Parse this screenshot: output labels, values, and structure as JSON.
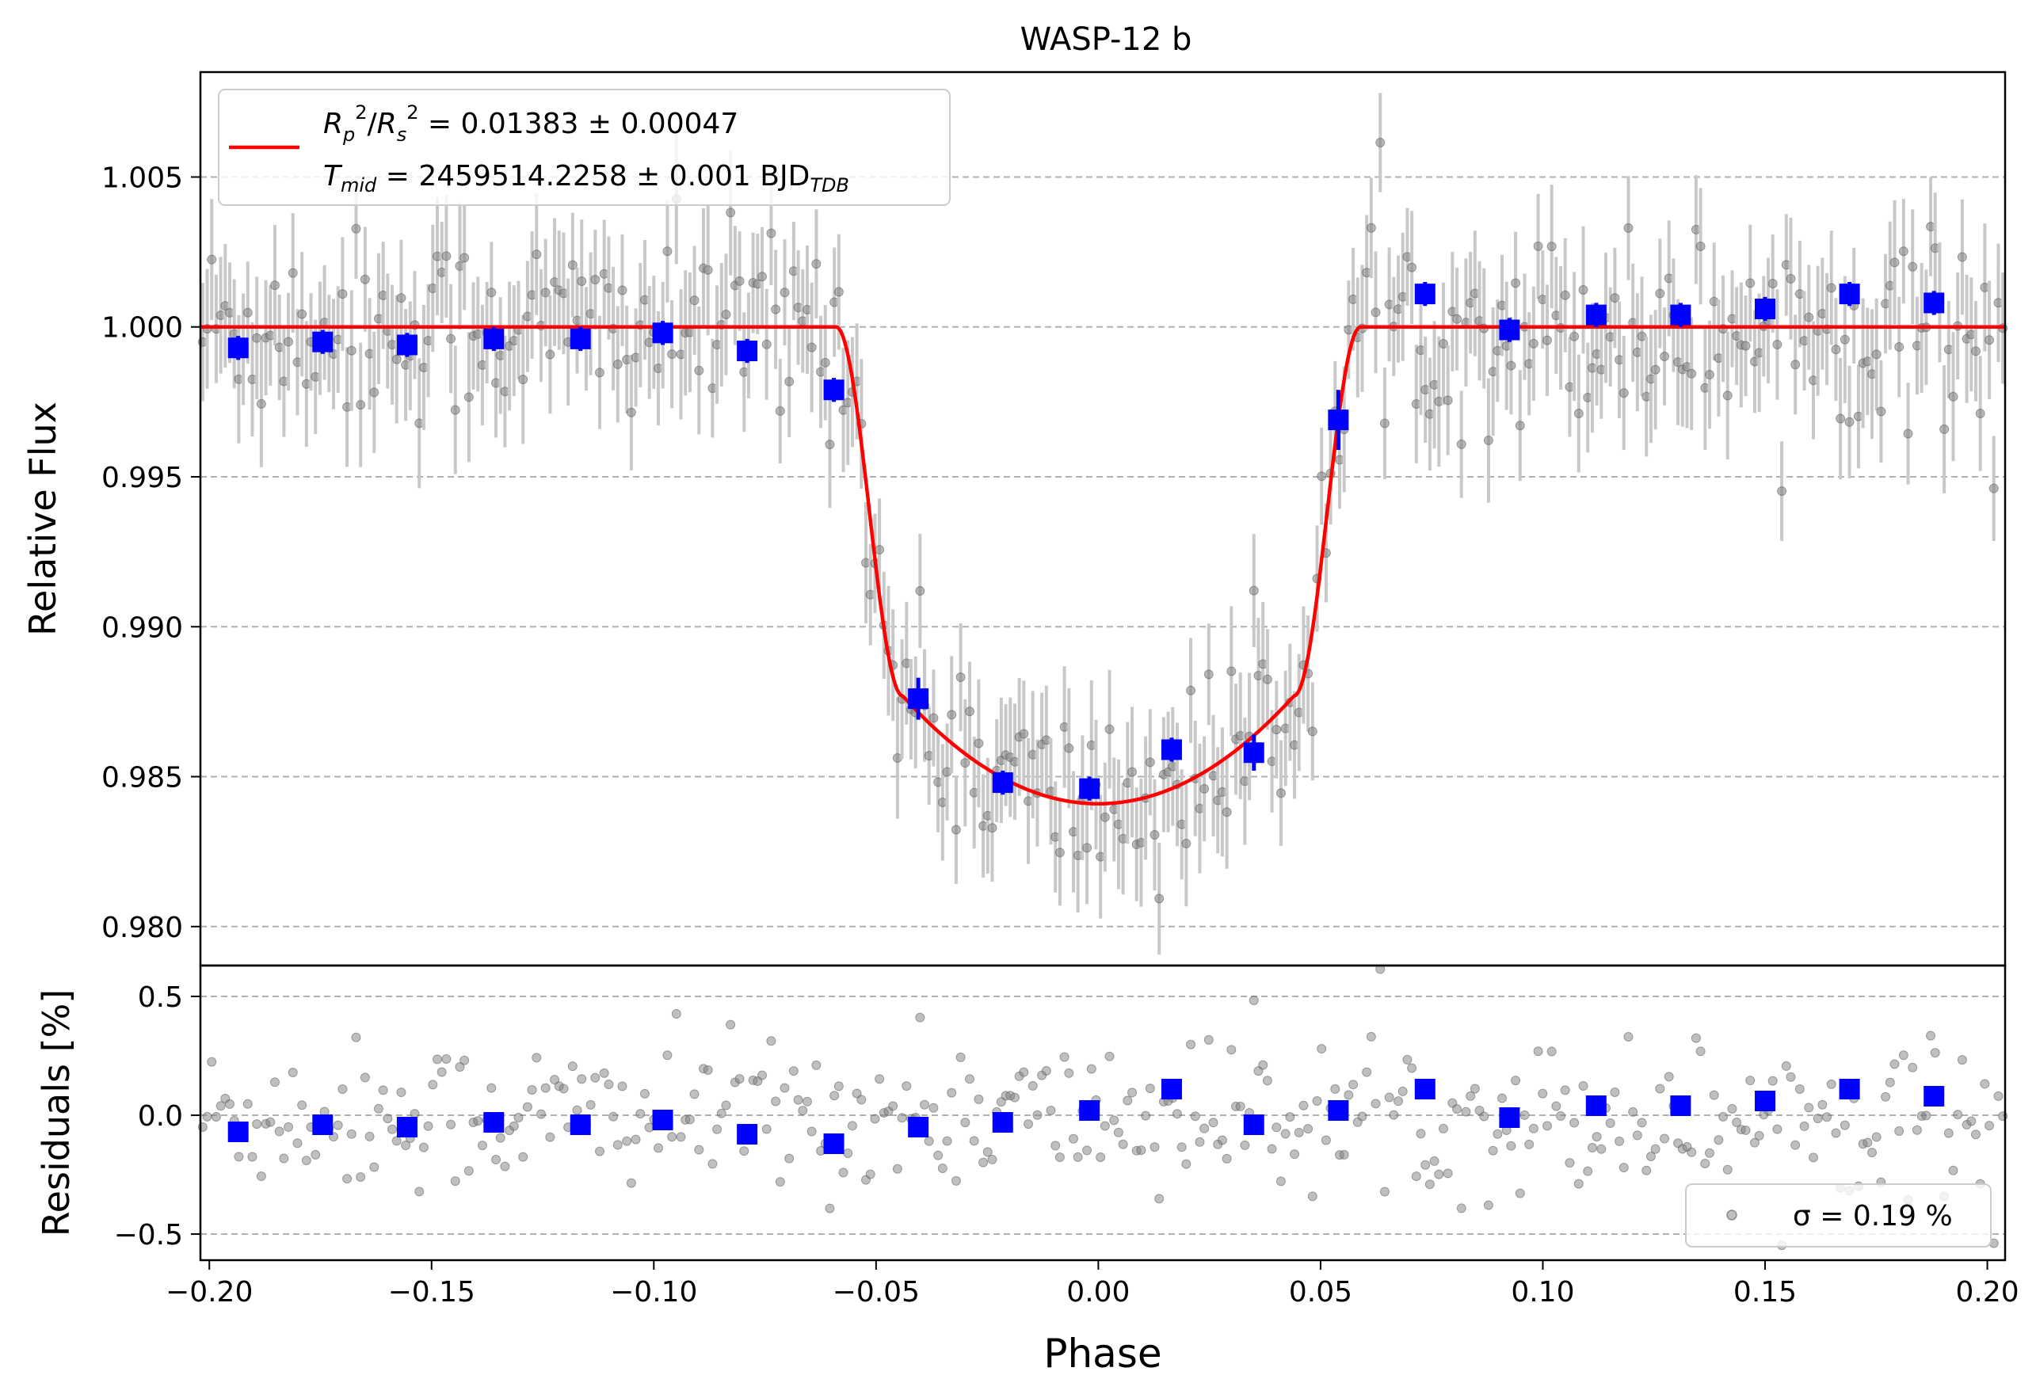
{
  "chart_data": {
    "type": "scatter",
    "title": "WASP-12 b",
    "xlabel": "Phase",
    "xlim": [
      -0.202,
      0.204
    ],
    "xticks": [
      -0.2,
      -0.15,
      -0.1,
      -0.05,
      0.0,
      0.05,
      0.1,
      0.15,
      0.2
    ],
    "xtick_labels": [
      "−0.20",
      "−0.15",
      "−0.10",
      "−0.05",
      "0.00",
      "0.05",
      "0.10",
      "0.15",
      "0.20"
    ],
    "top_panel": {
      "ylabel": "Relative Flux",
      "ylim": [
        0.9787,
        1.0085
      ],
      "yticks": [
        0.98,
        0.985,
        0.99,
        0.995,
        1.0,
        1.005
      ],
      "ytick_labels": [
        "0.980",
        "0.985",
        "0.990",
        "0.995",
        "1.000",
        "1.005"
      ],
      "grid": "horizontal dashed",
      "legend": {
        "position": "top-left",
        "line1": "Rₚ²/Rₛ² = 0.01383 ± 0.00047",
        "line1_main": "R",
        "line1_tail": " = 0.01383 ± 0.00047",
        "line2_main": "T",
        "line2_sub": "mid",
        "line2_value": " = 2459514.2258 ± 0.001 BJD",
        "line2_unit_sub": "TDB"
      },
      "model": {
        "name": "transit model",
        "color": "#ff0000",
        "depth": 0.01383,
        "t_mid_phase": 0.0,
        "ingress_start": -0.059,
        "full_start": -0.044,
        "full_end": 0.044,
        "egress_end": 0.059,
        "baseline": 1.0
      },
      "binned": {
        "color": "#0000ff",
        "x": [
          -0.1935,
          -0.1745,
          -0.1555,
          -0.136,
          -0.1165,
          -0.098,
          -0.079,
          -0.0595,
          -0.0405,
          -0.0215,
          -0.002,
          0.0165,
          0.035,
          0.054,
          0.0735,
          0.0925,
          0.112,
          0.131,
          0.15,
          0.169,
          0.188
        ],
        "y": [
          0.9993,
          0.9995,
          0.9994,
          0.9996,
          0.9996,
          0.9998,
          0.9992,
          0.9979,
          0.9876,
          0.9848,
          0.9846,
          0.9859,
          0.9858,
          0.9969,
          1.0011,
          0.9999,
          1.0004,
          1.0004,
          1.0006,
          1.0011,
          1.0008
        ],
        "err": [
          0.0004,
          0.0004,
          0.0004,
          0.0004,
          0.0004,
          0.0004,
          0.0004,
          0.0004,
          0.0007,
          0.0004,
          0.0004,
          0.0004,
          0.0006,
          0.001,
          0.0004,
          0.0004,
          0.0004,
          0.0004,
          0.0004,
          0.0004,
          0.0004
        ]
      },
      "raw": {
        "color": "#808080",
        "n_points": 400,
        "typical_error": 0.0019,
        "scatter": 0.0019
      }
    },
    "bottom_panel": {
      "ylabel": "Residuals [%]",
      "ylim": [
        -0.61,
        0.63
      ],
      "yticks": [
        -0.5,
        0.0,
        0.5
      ],
      "ytick_labels": [
        "−0.5",
        "0.0",
        "0.5"
      ],
      "grid": "horizontal dashed",
      "legend": {
        "position": "bottom-right",
        "label": "σ = 0.19 %"
      },
      "binned_residuals": [
        -0.07,
        -0.04,
        -0.05,
        -0.03,
        -0.04,
        -0.02,
        -0.08,
        -0.12,
        -0.05,
        -0.03,
        0.02,
        0.11,
        -0.04,
        0.02,
        0.11,
        -0.01,
        0.04,
        0.04,
        0.06,
        0.11,
        0.08
      ]
    }
  }
}
